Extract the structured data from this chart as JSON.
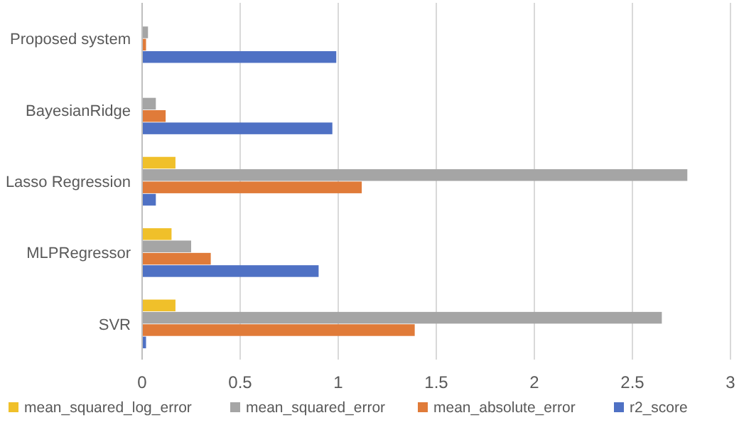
{
  "chart_data": {
    "type": "bar",
    "orientation": "horizontal",
    "categories": [
      "Proposed system",
      "BayesianRidge",
      "Lasso Regression",
      "MLPRegressor",
      "SVR"
    ],
    "series": [
      {
        "name": "mean_squared_log_error",
        "color": "#f0c02a",
        "values": [
          0,
          0,
          0.17,
          0.15,
          0.17
        ]
      },
      {
        "name": "mean_squared_error",
        "color": "#a5a5a5",
        "values": [
          0.03,
          0.07,
          2.78,
          0.25,
          2.65
        ]
      },
      {
        "name": "mean_absolute_error",
        "color": "#e07b39",
        "values": [
          0.02,
          0.12,
          1.12,
          0.35,
          1.39
        ]
      },
      {
        "name": "r2_score",
        "color": "#4f71c4",
        "values": [
          0.99,
          0.97,
          0.07,
          0.9,
          0.02
        ]
      }
    ],
    "xlim": [
      0,
      3
    ],
    "xticks": [
      0,
      0.5,
      1,
      1.5,
      2,
      2.5,
      3
    ],
    "grid": "x",
    "legend": "bottom"
  }
}
